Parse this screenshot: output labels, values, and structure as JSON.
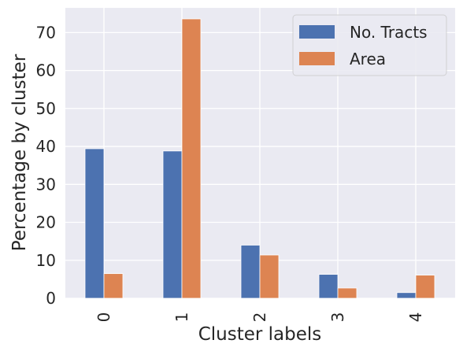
{
  "chart_data": {
    "type": "bar",
    "title": "",
    "xlabel": "Cluster labels",
    "ylabel": "Percentage by cluster",
    "categories": [
      "0",
      "1",
      "2",
      "3",
      "4"
    ],
    "series": [
      {
        "name": "No. Tracts",
        "color": "#4c72b0",
        "values": [
          39.4,
          38.8,
          14.0,
          6.3,
          1.5
        ]
      },
      {
        "name": "Area",
        "color": "#dd8452",
        "values": [
          6.5,
          73.6,
          11.4,
          2.7,
          6.1
        ]
      }
    ],
    "ylim": [
      0,
      76.5
    ],
    "yticks": [
      0,
      10,
      20,
      30,
      40,
      50,
      60,
      70
    ],
    "grid": true,
    "legend_position": "top-right",
    "background_color": "#eaeaf2",
    "grid_color": "#ffffff"
  }
}
